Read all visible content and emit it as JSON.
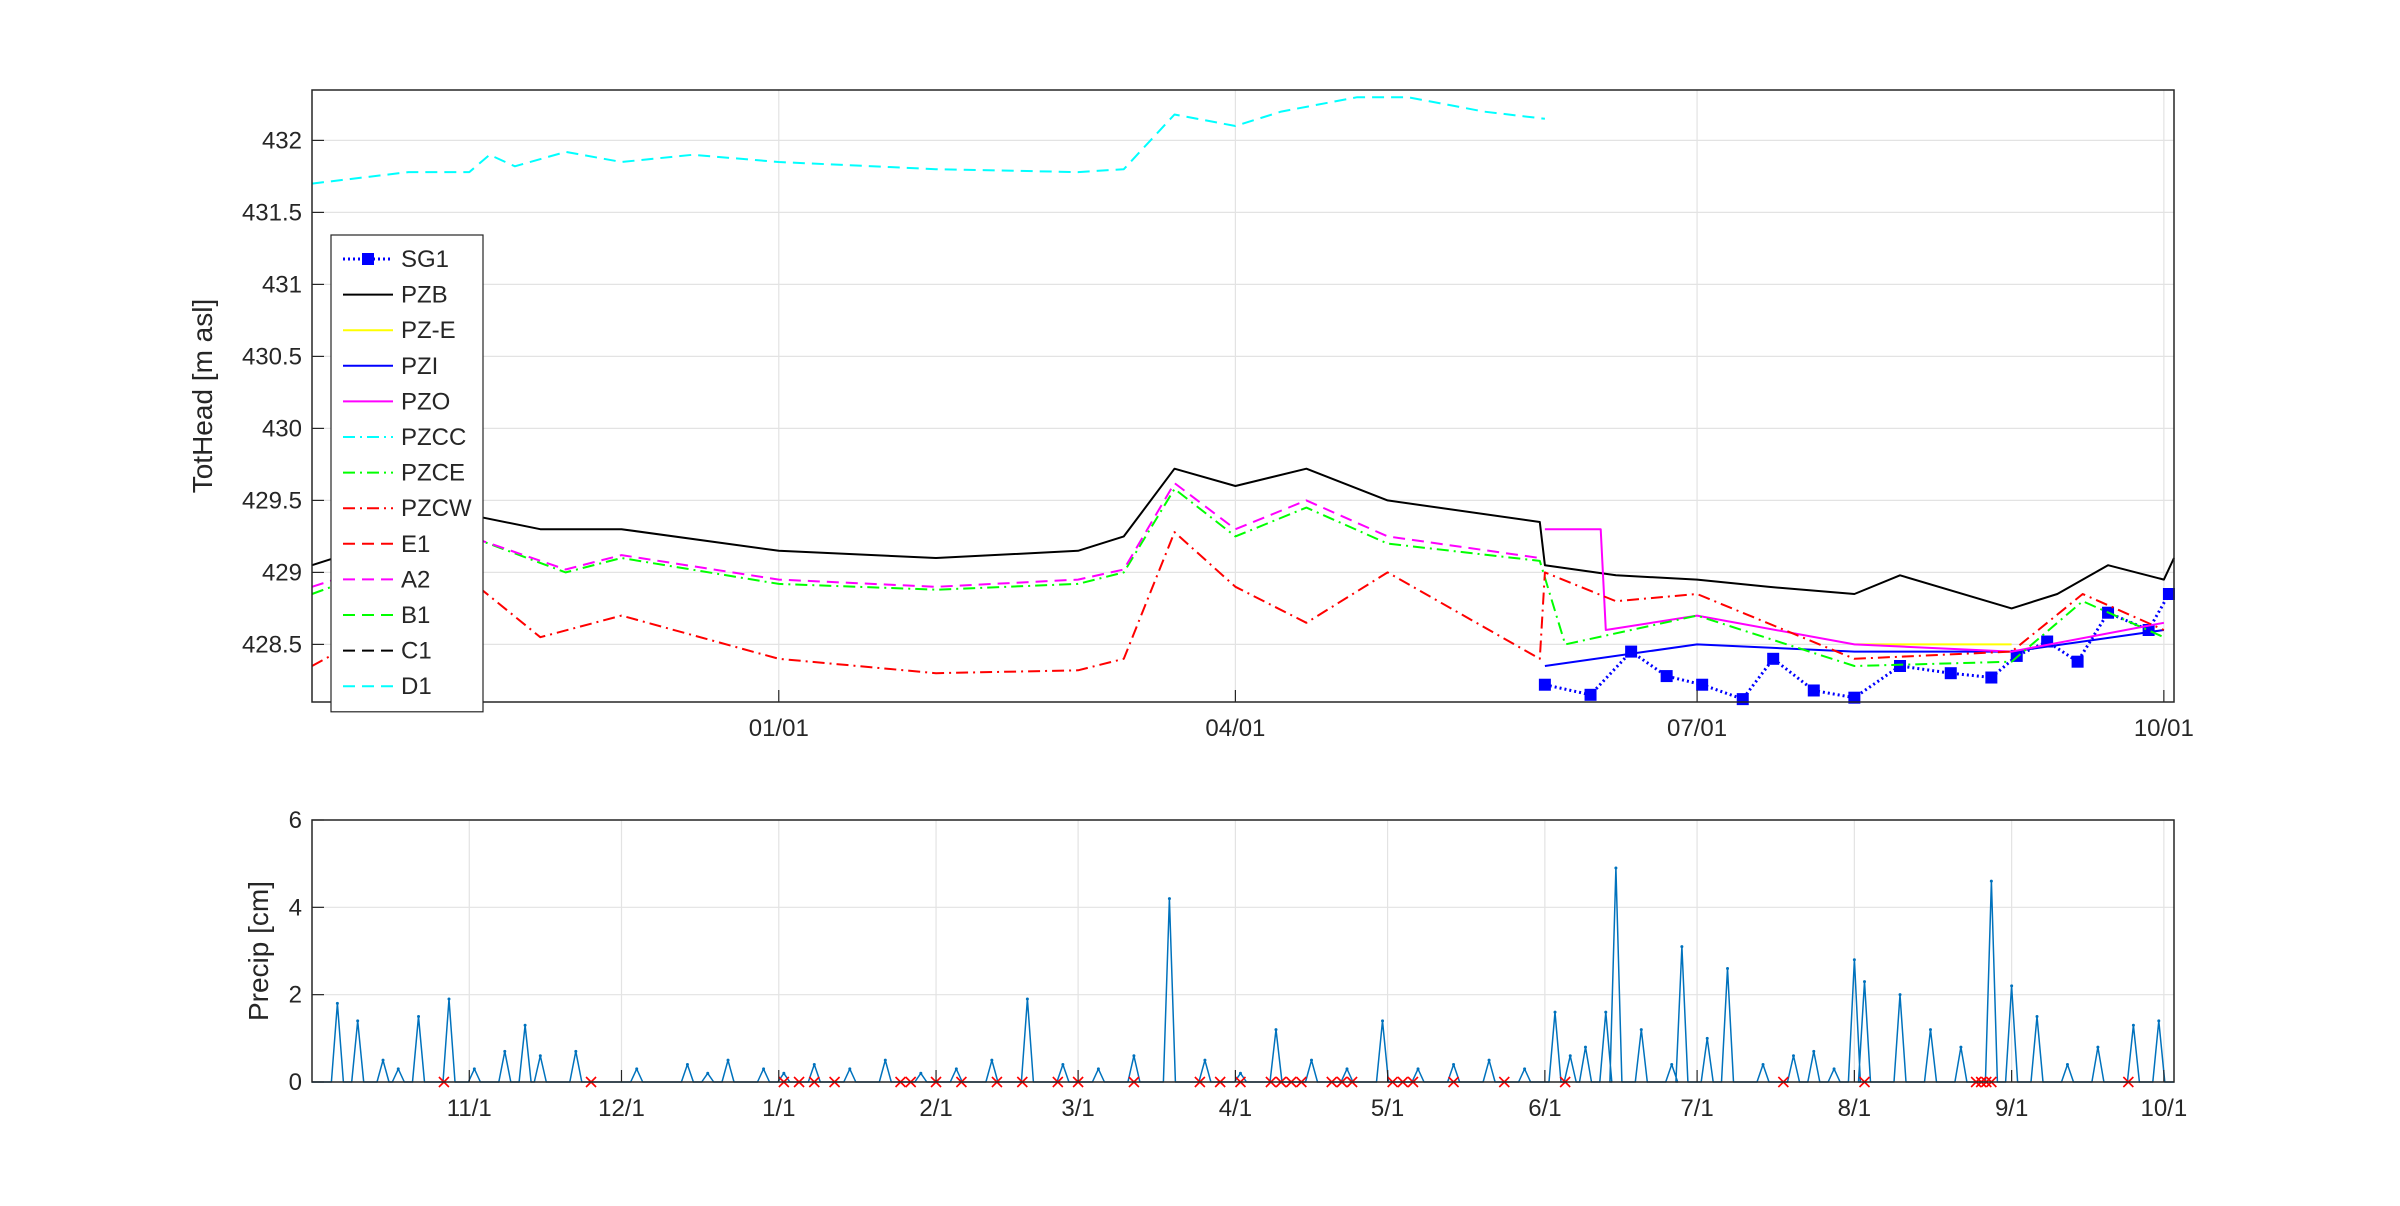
{
  "chart_data": [
    {
      "type": "line",
      "ylabel": "TotHead [m asl]",
      "xlabel": "",
      "ylim": [
        428.1,
        432.35
      ],
      "x_range": [
        "2017-10-01",
        "2018-10-03"
      ],
      "grid": true,
      "legend_placement": "left",
      "x_ticks": [
        {
          "date": "2018-01-01",
          "label": "01/01"
        },
        {
          "date": "2018-04-01",
          "label": "04/01"
        },
        {
          "date": "2018-07-01",
          "label": "07/01"
        },
        {
          "date": "2018-10-01",
          "label": "10/01"
        }
      ],
      "y_ticks": [
        {
          "value": 428.5,
          "label": "428.5"
        },
        {
          "value": 429,
          "label": "429"
        },
        {
          "value": 429.5,
          "label": "429.5"
        },
        {
          "value": 430,
          "label": "430"
        },
        {
          "value": 430.5,
          "label": "430.5"
        },
        {
          "value": 431,
          "label": "431"
        },
        {
          "value": 431.5,
          "label": "431.5"
        },
        {
          "value": 432,
          "label": "432"
        }
      ],
      "series": [
        {
          "name": "SG1",
          "color": "#0000ff",
          "style": "dotted-marker",
          "x": [
            "2018-06-01",
            "2018-06-10",
            "2018-06-18",
            "2018-06-25",
            "2018-07-02",
            "2018-07-10",
            "2018-07-16",
            "2018-07-24",
            "2018-08-01",
            "2018-08-10",
            "2018-08-20",
            "2018-08-28",
            "2018-09-02",
            "2018-09-08",
            "2018-09-14",
            "2018-09-20",
            "2018-09-28",
            "2018-10-02"
          ],
          "y": [
            428.22,
            428.15,
            428.45,
            428.28,
            428.22,
            428.12,
            428.4,
            428.18,
            428.13,
            428.35,
            428.3,
            428.27,
            428.42,
            428.52,
            428.38,
            428.72,
            428.6,
            428.85
          ]
        },
        {
          "name": "PZB",
          "color": "#000000",
          "style": "solid",
          "x": [
            "2017-10-01",
            "2017-11-01",
            "2017-11-15",
            "2017-12-01",
            "2018-01-01",
            "2018-02-01",
            "2018-03-01",
            "2018-03-10",
            "2018-03-20",
            "2018-04-01",
            "2018-04-15",
            "2018-05-01",
            "2018-05-31",
            "2018-06-01",
            "2018-06-15",
            "2018-07-01",
            "2018-07-15",
            "2018-08-01",
            "2018-08-10",
            "2018-09-01",
            "2018-09-10",
            "2018-09-20",
            "2018-10-01",
            "2018-10-03"
          ],
          "y": [
            429.05,
            429.4,
            429.3,
            429.3,
            429.15,
            429.1,
            429.15,
            429.25,
            429.72,
            429.6,
            429.72,
            429.5,
            429.35,
            429.05,
            428.98,
            428.95,
            428.9,
            428.85,
            428.98,
            428.75,
            428.85,
            429.05,
            428.95,
            429.1
          ]
        },
        {
          "name": "PZ-E",
          "color": "#ffff00",
          "style": "solid",
          "x": [
            "2018-08-01",
            "2018-09-01"
          ],
          "y": [
            428.5,
            428.5
          ]
        },
        {
          "name": "PZI",
          "color": "#0000ff",
          "style": "solid",
          "x": [
            "2018-06-01",
            "2018-07-01",
            "2018-08-01",
            "2018-09-01",
            "2018-10-01"
          ],
          "y": [
            428.35,
            428.5,
            428.45,
            428.45,
            428.6
          ]
        },
        {
          "name": "PZO",
          "color": "#ff00ff",
          "style": "solid",
          "x": [
            "2018-06-01",
            "2018-06-12",
            "2018-06-13",
            "2018-07-01",
            "2018-08-01",
            "2018-09-01",
            "2018-10-01"
          ],
          "y": [
            429.3,
            429.3,
            428.6,
            428.7,
            428.5,
            428.45,
            428.65
          ]
        },
        {
          "name": "PZCC",
          "color": "#00ffff",
          "style": "dashdot",
          "x": [],
          "y": []
        },
        {
          "name": "PZCE",
          "color": "#00ff00",
          "style": "dashdot",
          "x": [
            "2017-10-01",
            "2017-11-01",
            "2017-11-20",
            "2017-12-01",
            "2018-01-01",
            "2018-02-01",
            "2018-03-01",
            "2018-03-10",
            "2018-03-20",
            "2018-04-01",
            "2018-04-15",
            "2018-05-01",
            "2018-05-31",
            "2018-06-05",
            "2018-07-01",
            "2018-08-01",
            "2018-09-01",
            "2018-09-15",
            "2018-10-01"
          ],
          "y": [
            428.85,
            429.25,
            429.0,
            429.1,
            428.92,
            428.88,
            428.92,
            429.0,
            429.58,
            429.25,
            429.45,
            429.2,
            429.08,
            428.5,
            428.7,
            428.35,
            428.38,
            428.8,
            428.55
          ]
        },
        {
          "name": "PZCW",
          "color": "#ff0000",
          "style": "dashdot",
          "x": [
            "2017-10-01",
            "2017-11-01",
            "2017-11-15",
            "2017-12-01",
            "2018-01-01",
            "2018-02-01",
            "2018-03-01",
            "2018-03-10",
            "2018-03-20",
            "2018-04-01",
            "2018-04-15",
            "2018-05-01",
            "2018-05-31",
            "2018-06-01",
            "2018-06-15",
            "2018-07-01",
            "2018-08-01",
            "2018-09-01",
            "2018-09-15",
            "2018-10-01"
          ],
          "y": [
            428.35,
            428.95,
            428.55,
            428.7,
            428.4,
            428.3,
            428.32,
            428.4,
            429.28,
            428.9,
            428.65,
            429.0,
            428.4,
            429.0,
            428.8,
            428.85,
            428.4,
            428.45,
            428.85,
            428.6
          ]
        },
        {
          "name": "E1",
          "color": "#ff0000",
          "style": "dashed",
          "x": [],
          "y": []
        },
        {
          "name": "A2",
          "color": "#ff00ff",
          "style": "dashed",
          "x": [
            "2017-10-01",
            "2017-11-01",
            "2017-11-20",
            "2017-12-01",
            "2018-01-01",
            "2018-02-01",
            "2018-03-01",
            "2018-03-10",
            "2018-03-20",
            "2018-04-01",
            "2018-04-15",
            "2018-05-01",
            "2018-05-31"
          ],
          "y": [
            428.9,
            429.25,
            429.02,
            429.12,
            428.95,
            428.9,
            428.95,
            429.02,
            429.62,
            429.3,
            429.5,
            429.25,
            429.1
          ]
        },
        {
          "name": "B1",
          "color": "#00ff00",
          "style": "dashed",
          "x": [],
          "y": []
        },
        {
          "name": "C1",
          "color": "#000000",
          "style": "dashed",
          "x": [],
          "y": []
        },
        {
          "name": "D1",
          "color": "#00ffff",
          "style": "dashed",
          "x": [
            "2017-10-01",
            "2017-10-20",
            "2017-11-01",
            "2017-11-05",
            "2017-11-10",
            "2017-11-20",
            "2017-12-01",
            "2017-12-15",
            "2018-01-01",
            "2018-02-01",
            "2018-03-01",
            "2018-03-10",
            "2018-03-20",
            "2018-04-01",
            "2018-04-10",
            "2018-04-25",
            "2018-05-05",
            "2018-05-20",
            "2018-06-01"
          ],
          "y": [
            431.7,
            431.78,
            431.78,
            431.9,
            431.82,
            431.92,
            431.85,
            431.9,
            431.85,
            431.8,
            431.78,
            431.8,
            432.18,
            432.1,
            432.2,
            432.3,
            432.3,
            432.2,
            432.15
          ]
        }
      ]
    },
    {
      "type": "line",
      "ylabel": "Precip [cm]",
      "xlabel": "",
      "ylim": [
        0,
        6
      ],
      "x_range": [
        "2017-10-01",
        "2018-10-03"
      ],
      "grid": true,
      "x_ticks": [
        {
          "date": "2017-11-01",
          "label": "11/1"
        },
        {
          "date": "2017-12-01",
          "label": "12/1"
        },
        {
          "date": "2018-01-01",
          "label": "1/1"
        },
        {
          "date": "2018-02-01",
          "label": "2/1"
        },
        {
          "date": "2018-03-01",
          "label": "3/1"
        },
        {
          "date": "2018-04-01",
          "label": "4/1"
        },
        {
          "date": "2018-05-01",
          "label": "5/1"
        },
        {
          "date": "2018-06-01",
          "label": "6/1"
        },
        {
          "date": "2018-07-01",
          "label": "7/1"
        },
        {
          "date": "2018-08-01",
          "label": "8/1"
        },
        {
          "date": "2018-09-01",
          "label": "9/1"
        },
        {
          "date": "2018-10-01",
          "label": "10/1"
        }
      ],
      "y_ticks": [
        {
          "value": 0,
          "label": "0"
        },
        {
          "value": 2,
          "label": "2"
        },
        {
          "value": 4,
          "label": "4"
        },
        {
          "value": 6,
          "label": "6"
        }
      ],
      "series": [
        {
          "name": "",
          "color": "#0072bd",
          "style": "solid",
          "x": [
            "2017-10-06",
            "2017-10-10",
            "2017-10-15",
            "2017-10-18",
            "2017-10-22",
            "2017-10-28",
            "2017-11-02",
            "2017-11-08",
            "2017-11-12",
            "2017-11-15",
            "2017-11-22",
            "2017-12-04",
            "2017-12-14",
            "2017-12-18",
            "2017-12-22",
            "2017-12-29",
            "2018-01-02",
            "2018-01-08",
            "2018-01-15",
            "2018-01-22",
            "2018-01-29",
            "2018-02-05",
            "2018-02-12",
            "2018-02-19",
            "2018-02-26",
            "2018-03-05",
            "2018-03-12",
            "2018-03-19",
            "2018-03-26",
            "2018-04-02",
            "2018-04-09",
            "2018-04-16",
            "2018-04-23",
            "2018-04-30",
            "2018-05-07",
            "2018-05-14",
            "2018-05-21",
            "2018-05-28",
            "2018-06-03",
            "2018-06-06",
            "2018-06-09",
            "2018-06-13",
            "2018-06-15",
            "2018-06-20",
            "2018-06-26",
            "2018-06-28",
            "2018-07-03",
            "2018-07-07",
            "2018-07-14",
            "2018-07-20",
            "2018-07-24",
            "2018-07-28",
            "2018-08-01",
            "2018-08-03",
            "2018-08-10",
            "2018-08-16",
            "2018-08-22",
            "2018-08-28",
            "2018-09-01",
            "2018-09-06",
            "2018-09-12",
            "2018-09-18",
            "2018-09-25",
            "2018-09-30"
          ],
          "y": [
            1.8,
            1.4,
            0.5,
            0.3,
            1.5,
            1.9,
            0.3,
            0.7,
            1.3,
            0.6,
            0.7,
            0.3,
            0.4,
            0.2,
            0.5,
            0.3,
            0.2,
            0.4,
            0.3,
            0.5,
            0.2,
            0.3,
            0.5,
            1.9,
            0.4,
            0.3,
            0.6,
            4.2,
            0.5,
            0.2,
            1.2,
            0.5,
            0.3,
            1.4,
            0.3,
            0.4,
            0.5,
            0.3,
            1.6,
            0.6,
            0.8,
            1.6,
            4.9,
            1.2,
            0.4,
            3.1,
            1.0,
            2.6,
            0.4,
            0.6,
            0.7,
            0.3,
            2.8,
            2.3,
            2.0,
            1.2,
            0.8,
            4.6,
            2.2,
            1.5,
            0.4,
            0.8,
            1.3,
            1.4
          ]
        },
        {
          "name": "",
          "color": "#ff0000",
          "style": "markers-x",
          "x": [
            "2017-10-27",
            "2017-11-25",
            "2018-01-02",
            "2018-01-05",
            "2018-01-08",
            "2018-01-12",
            "2018-01-25",
            "2018-01-27",
            "2018-02-01",
            "2018-02-06",
            "2018-02-13",
            "2018-02-18",
            "2018-02-25",
            "2018-03-01",
            "2018-03-12",
            "2018-03-25",
            "2018-03-29",
            "2018-04-02",
            "2018-04-08",
            "2018-04-10",
            "2018-04-12",
            "2018-04-14",
            "2018-04-20",
            "2018-04-22",
            "2018-04-24",
            "2018-05-02",
            "2018-05-04",
            "2018-05-06",
            "2018-05-14",
            "2018-05-24",
            "2018-06-05",
            "2018-07-18",
            "2018-08-03",
            "2018-08-25",
            "2018-08-26",
            "2018-08-27",
            "2018-08-28",
            "2018-09-24"
          ],
          "y": [
            0,
            0,
            0,
            0,
            0,
            0,
            0,
            0,
            0,
            0,
            0,
            0,
            0,
            0,
            0,
            0,
            0,
            0,
            0,
            0,
            0,
            0,
            0,
            0,
            0,
            0,
            0,
            0,
            0,
            0,
            0,
            0,
            0,
            0,
            0,
            0,
            0,
            0
          ]
        }
      ]
    }
  ]
}
